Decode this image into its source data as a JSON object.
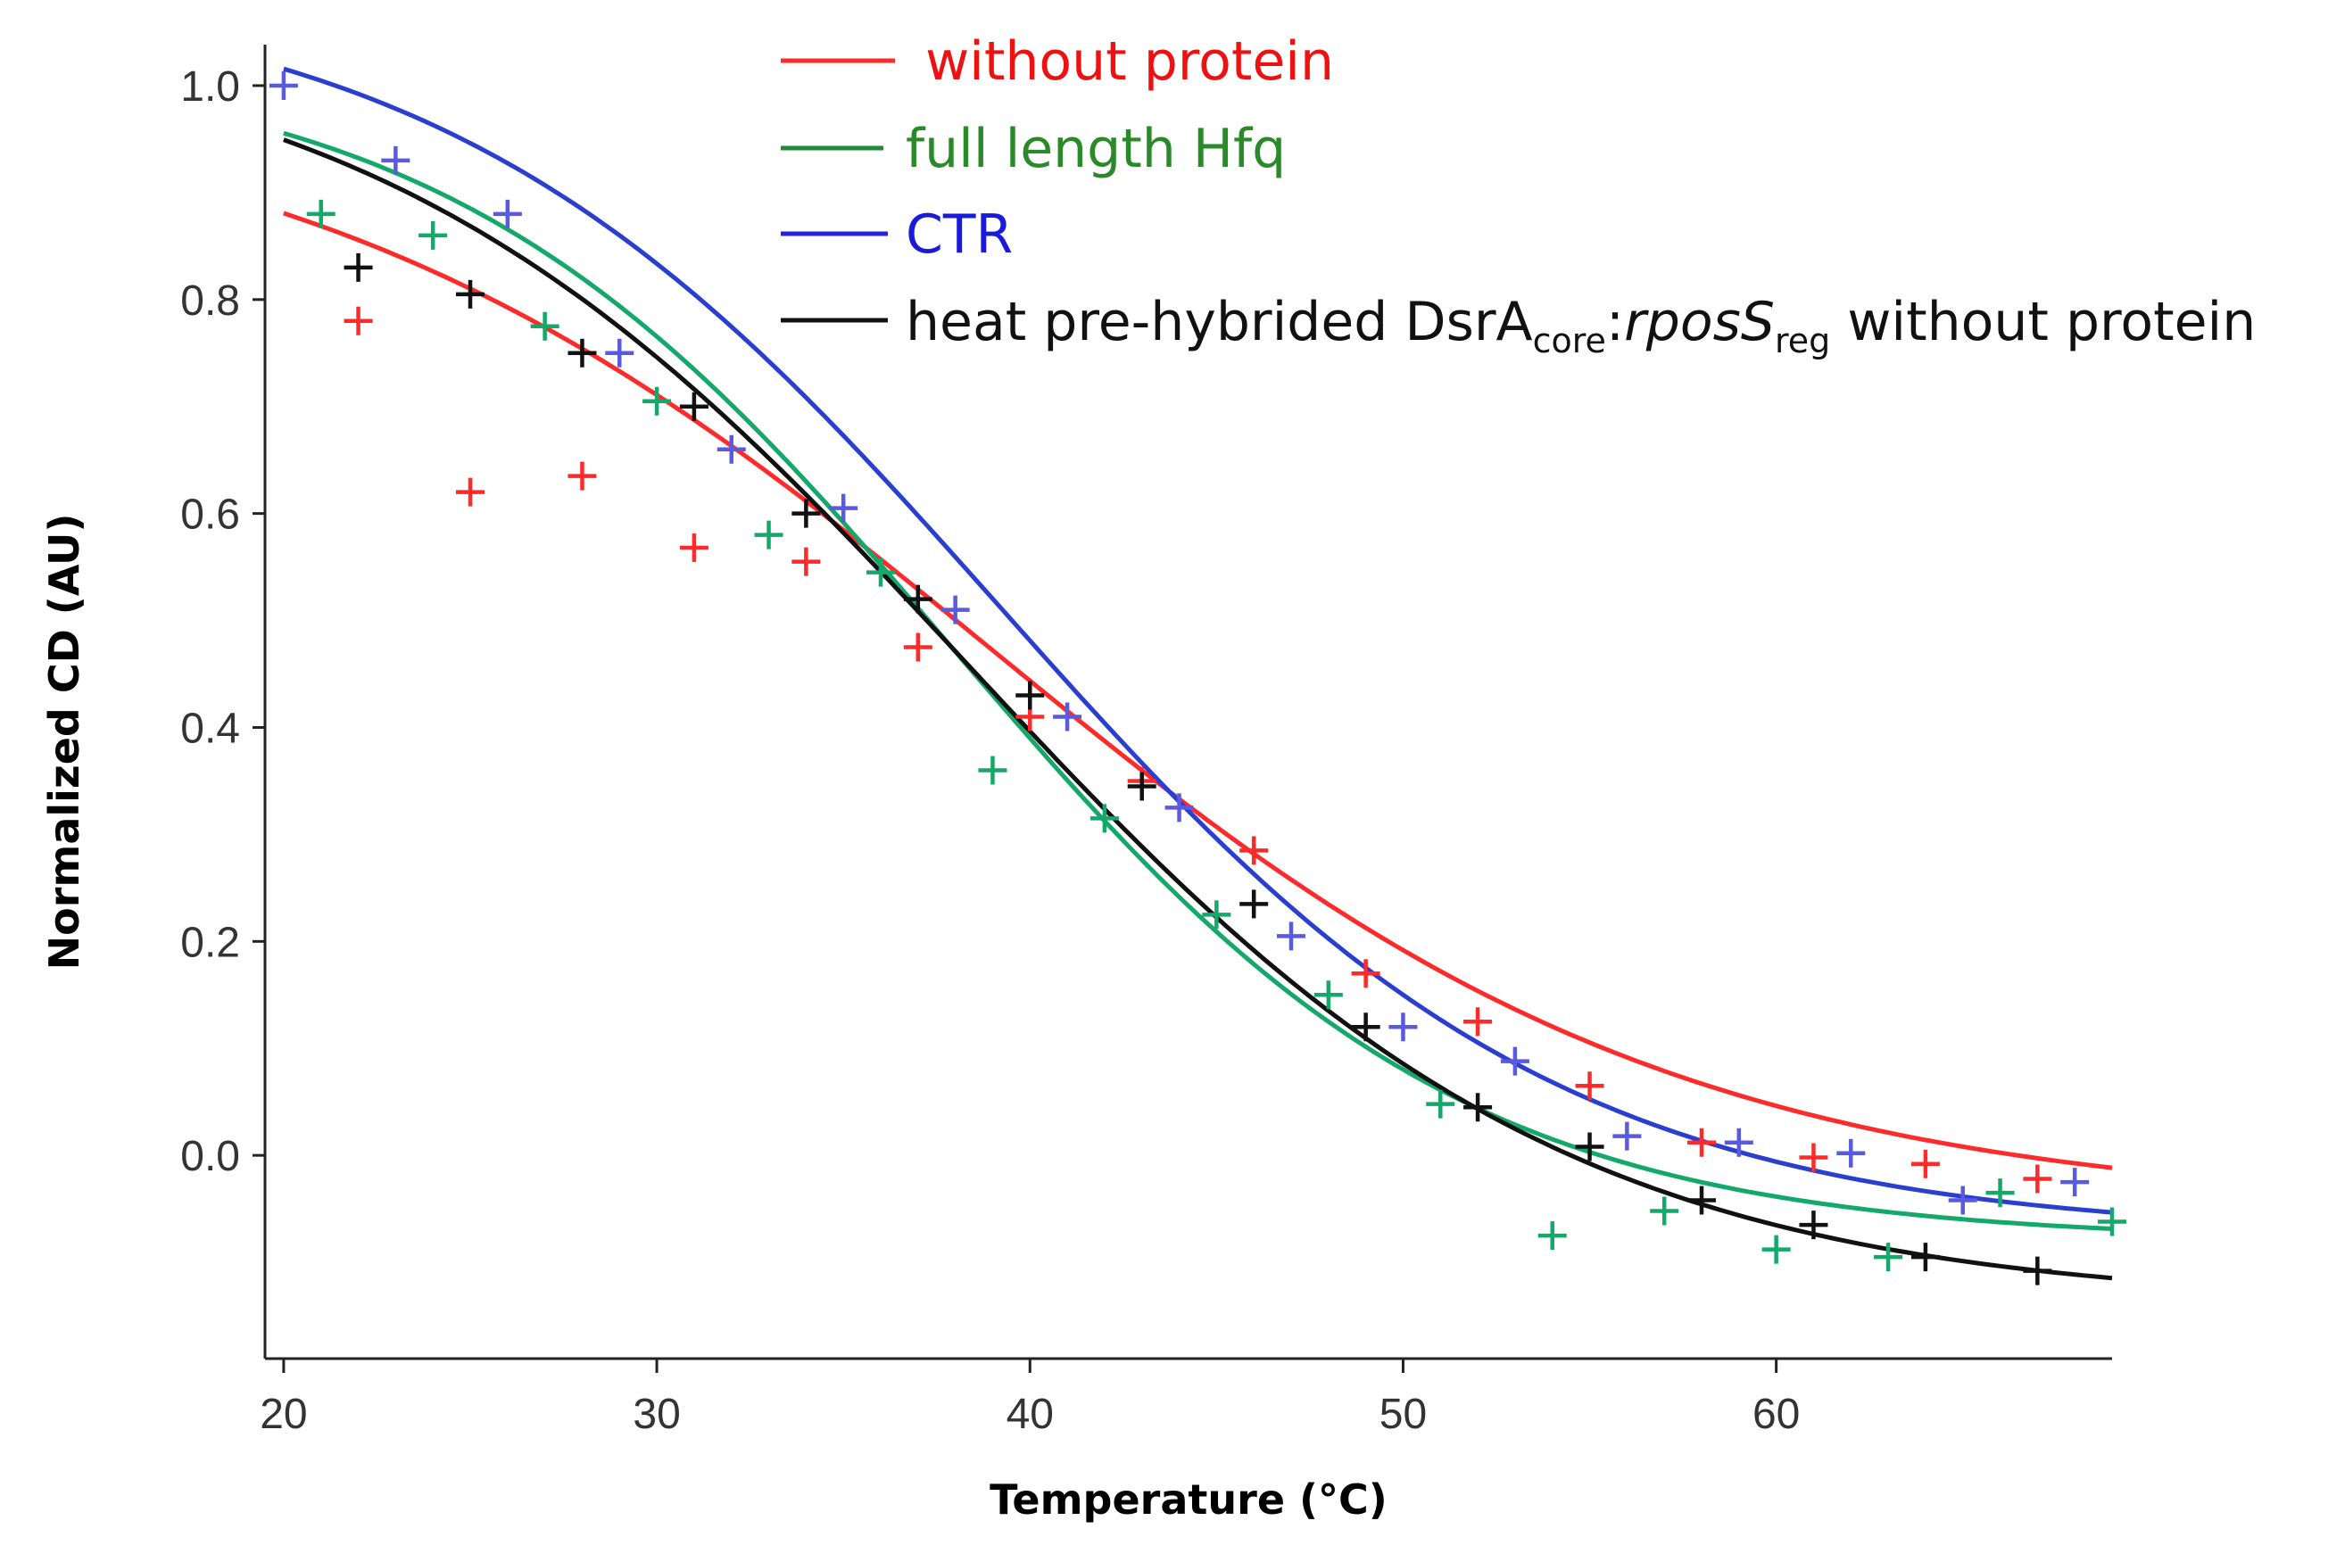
{
  "chart_data": {
    "type": "scatter",
    "title": "",
    "xlabel": "Temperature (°C)",
    "ylabel": "Normalized CD (AU)",
    "xlim": [
      19.5,
      69
    ],
    "ylim": [
      -0.19,
      1.03
    ],
    "xticks": [
      20,
      30,
      40,
      50,
      60
    ],
    "yticks": [
      0.0,
      0.2,
      0.4,
      0.6,
      0.8,
      1.0
    ],
    "xtick_labels": [
      "20",
      "30",
      "40",
      "50",
      "60"
    ],
    "ytick_labels": [
      "0.0",
      "0.2",
      "0.4",
      "0.6",
      "0.8",
      "1.0"
    ],
    "legend_position": "top-right",
    "legend": [
      {
        "id": "red",
        "label": " without protein"
      },
      {
        "id": "green",
        "label": "full length Hfq"
      },
      {
        "id": "blue",
        "label": "CTR"
      },
      {
        "id": "black",
        "label_parts": [
          "heat pre-hybrided DsrA",
          "core",
          ":",
          "rposS",
          "reg",
          " without protein"
        ]
      }
    ],
    "series": [
      {
        "name": "without protein",
        "color": "#ff2a2a",
        "marker": "+",
        "fit": {
          "a": -0.05,
          "b": 1.0,
          "xmid": 38.9,
          "slope": 9.2
        },
        "x": [
          22,
          25,
          28,
          31,
          34,
          37,
          40,
          43,
          46,
          49,
          52,
          55,
          58,
          61,
          64,
          67
        ],
        "y": [
          0.78,
          0.62,
          0.635,
          0.568,
          0.555,
          0.475,
          0.41,
          0.35,
          0.285,
          0.17,
          0.125,
          0.065,
          0.012,
          -0.002,
          -0.008,
          -0.022
        ]
      },
      {
        "name": "full length Hfq",
        "color": "#14a86a",
        "marker": "+",
        "fit": {
          "a": -0.08,
          "b": 1.03,
          "xmid": 37.9,
          "slope": 6.8
        },
        "x": [
          21,
          24,
          27,
          30,
          33,
          36,
          39,
          42,
          45,
          48,
          51,
          54,
          57,
          60,
          63,
          66,
          69
        ],
        "y": [
          0.88,
          0.86,
          0.775,
          0.705,
          0.58,
          0.545,
          0.36,
          0.315,
          0.225,
          0.15,
          0.048,
          -0.075,
          -0.052,
          -0.088,
          -0.095,
          -0.035,
          -0.062
        ]
      },
      {
        "name": "CTR",
        "color": "#5a5adf",
        "marker": "+",
        "fit": {
          "a": -0.075,
          "b": 1.1,
          "xmid": 39.2,
          "slope": 7.5
        },
        "x": [
          20,
          23,
          26,
          29,
          32,
          35,
          38,
          41,
          44,
          47,
          50,
          53,
          56,
          59,
          62,
          65,
          68
        ],
        "y": [
          1.0,
          0.93,
          0.88,
          0.75,
          0.66,
          0.605,
          0.51,
          0.41,
          0.325,
          0.205,
          0.12,
          0.088,
          0.018,
          0.012,
          0.002,
          -0.042,
          -0.025
        ]
      },
      {
        "name": "heat pre-hybrided DsrAcore:rposSreg without protein",
        "color": "#111111",
        "marker": "+",
        "fit": {
          "a": -0.14,
          "b": 1.06,
          "xmid": 38.3,
          "slope": 8.0
        },
        "x": [
          22,
          25,
          28,
          31,
          34,
          37,
          40,
          43,
          46,
          49,
          52,
          55,
          58,
          61,
          64,
          67
        ],
        "y": [
          0.83,
          0.805,
          0.75,
          0.7,
          0.6,
          0.52,
          0.43,
          0.345,
          0.235,
          0.12,
          0.045,
          0.008,
          -0.042,
          -0.065,
          -0.095,
          -0.108
        ]
      }
    ]
  }
}
